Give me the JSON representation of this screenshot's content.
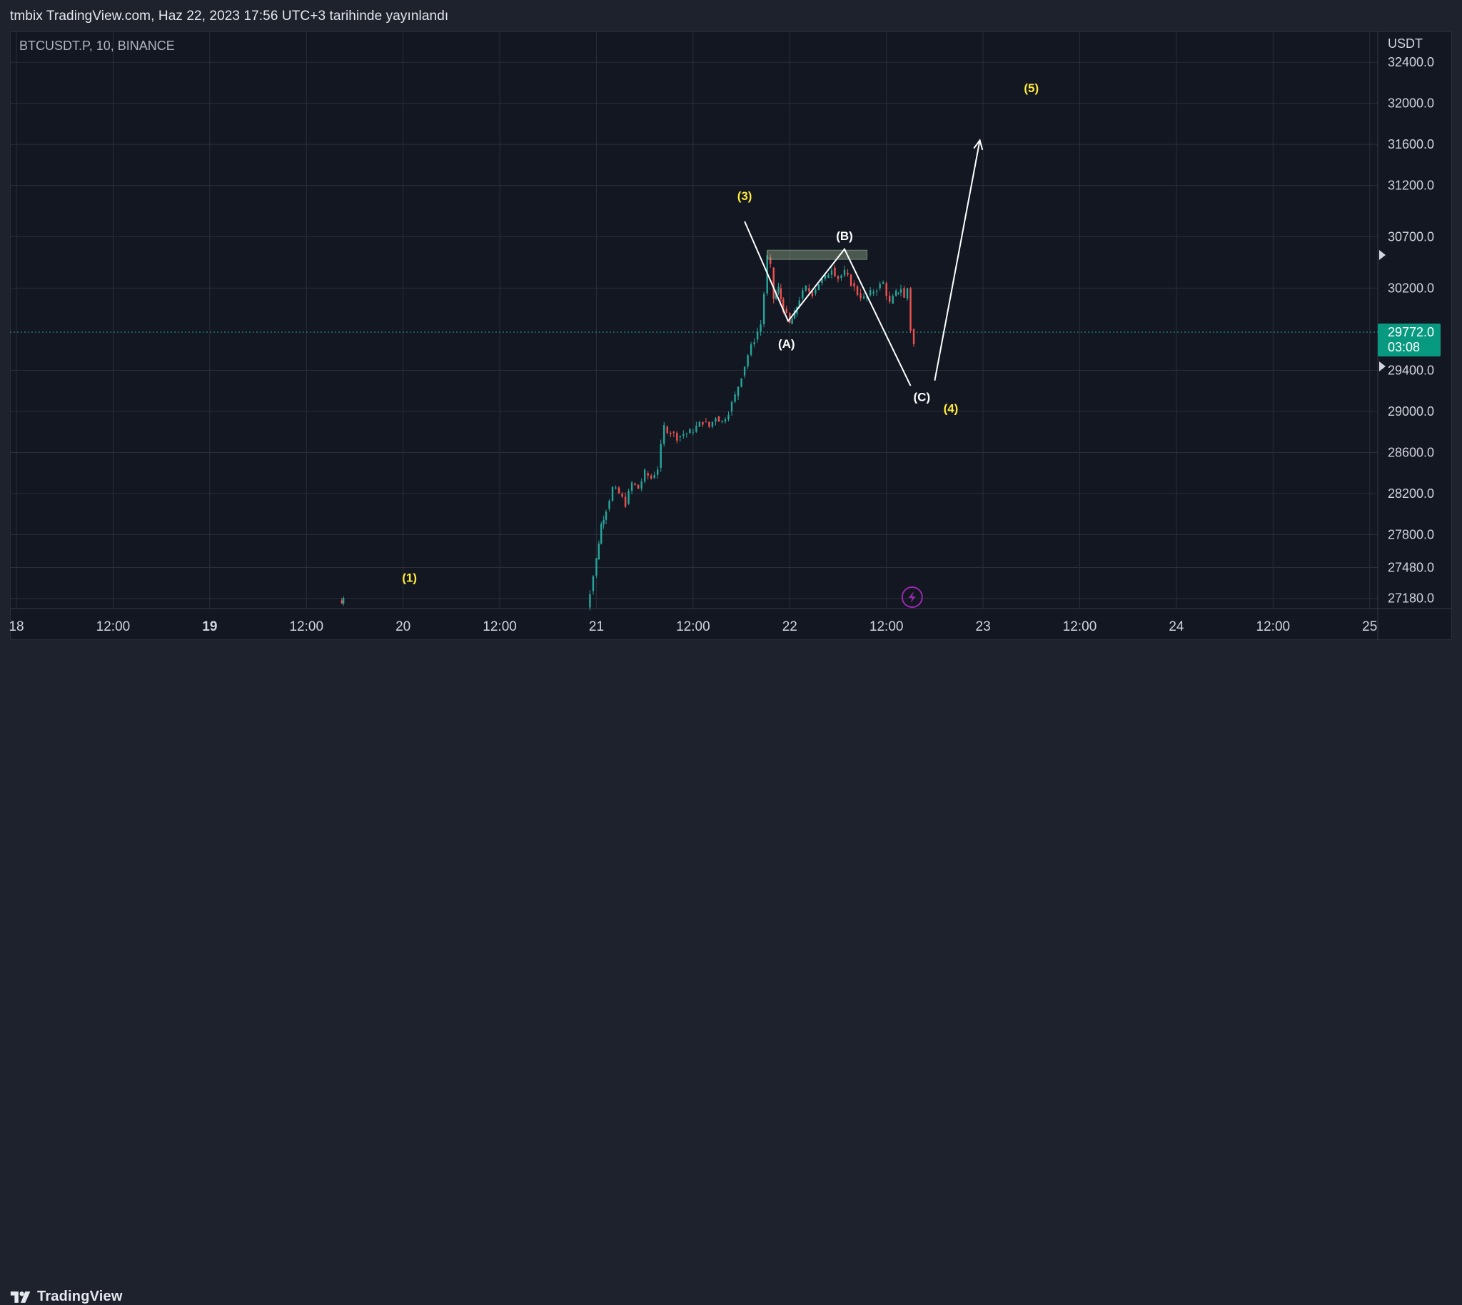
{
  "header": {
    "publish_text": "tmbix TradingView.com, Haz 22, 2023 17:56 UTC+3 tarihinde yayınlandı"
  },
  "footer": {
    "brand": "TradingView"
  },
  "chart_data": {
    "type": "candlestick",
    "symbol_label": "BTCUSDT.P, 10, BINANCE",
    "currency": "USDT",
    "ylim": [
      27080,
      32700
    ],
    "y_ticks": [
      {
        "value": 32400,
        "label": "32400.0"
      },
      {
        "value": 32000,
        "label": "32000.0"
      },
      {
        "value": 31600,
        "label": "31600.0"
      },
      {
        "value": 31200,
        "label": "31200.0"
      },
      {
        "value": 30700,
        "label": "30700.0"
      },
      {
        "value": 30200,
        "label": "30200.0"
      },
      {
        "value": 29400,
        "label": "29400.0"
      },
      {
        "value": 29000,
        "label": "29000.0"
      },
      {
        "value": 28600,
        "label": "28600.0"
      },
      {
        "value": 28200,
        "label": "28200.0"
      },
      {
        "value": 27800,
        "label": "27800.0"
      },
      {
        "value": 27480,
        "label": "27480.0"
      },
      {
        "value": 27180,
        "label": "27180.0"
      }
    ],
    "x_range_hours": [
      -0.4,
      84.5
    ],
    "x_ticks": [
      {
        "hour": 0,
        "label": "18",
        "bold": false
      },
      {
        "hour": 6,
        "label": "12:00",
        "bold": false
      },
      {
        "hour": 12,
        "label": "19",
        "bold": true
      },
      {
        "hour": 18,
        "label": "12:00",
        "bold": false
      },
      {
        "hour": 24,
        "label": "20",
        "bold": false
      },
      {
        "hour": 30,
        "label": "12:00",
        "bold": false
      },
      {
        "hour": 36,
        "label": "21",
        "bold": false
      },
      {
        "hour": 42,
        "label": "12:00",
        "bold": false
      },
      {
        "hour": 48,
        "label": "22",
        "bold": false
      },
      {
        "hour": 54,
        "label": "12:00",
        "bold": false
      },
      {
        "hour": 60,
        "label": "23",
        "bold": false
      },
      {
        "hour": 66,
        "label": "12:00",
        "bold": false
      },
      {
        "hour": 72,
        "label": "24",
        "bold": false
      },
      {
        "hour": 78,
        "label": "12:00",
        "bold": false
      },
      {
        "hour": 84,
        "label": "25",
        "bold": false
      }
    ],
    "last_price": {
      "value": 29772,
      "label": "29772.0",
      "countdown": "03:08"
    },
    "colors": {
      "up": "#26a69a",
      "down": "#ef5350",
      "grid": "#2a2e39",
      "price_line": "#26a69a",
      "wave_label_yellow": "#ffeb3b",
      "wave_label_white": "#ffffff",
      "zone": "#8fa88a",
      "last_price_bg": "#089981",
      "flash_icon": "#9c27b0"
    },
    "price_path": [
      [
        20.1,
        27160
      ],
      [
        20.2,
        27130
      ],
      [
        20.3,
        27200
      ],
      [
        35.4,
        27090
      ],
      [
        35.6,
        27250
      ],
      [
        35.8,
        27400
      ],
      [
        36.0,
        27560
      ],
      [
        36.3,
        27900
      ],
      [
        36.6,
        28050
      ],
      [
        37.0,
        28250
      ],
      [
        37.4,
        28200
      ],
      [
        37.8,
        28100
      ],
      [
        38.2,
        28300
      ],
      [
        38.6,
        28250
      ],
      [
        39.0,
        28400
      ],
      [
        39.4,
        28350
      ],
      [
        39.8,
        28450
      ],
      [
        40.2,
        28850
      ],
      [
        40.6,
        28800
      ],
      [
        41.0,
        28750
      ],
      [
        41.4,
        28780
      ],
      [
        41.8,
        28800
      ],
      [
        42.2,
        28850
      ],
      [
        42.6,
        28900
      ],
      [
        43.0,
        28850
      ],
      [
        43.4,
        28950
      ],
      [
        43.8,
        28900
      ],
      [
        44.2,
        29000
      ],
      [
        44.6,
        29150
      ],
      [
        45.0,
        29350
      ],
      [
        45.4,
        29550
      ],
      [
        45.8,
        29700
      ],
      [
        46.2,
        29850
      ],
      [
        46.4,
        30150
      ],
      [
        46.6,
        30500
      ],
      [
        46.8,
        30400
      ],
      [
        47.0,
        30100
      ],
      [
        47.3,
        30200
      ],
      [
        47.6,
        30000
      ],
      [
        48.0,
        29850
      ],
      [
        48.3,
        29950
      ],
      [
        48.6,
        30100
      ],
      [
        49.0,
        30200
      ],
      [
        49.4,
        30150
      ],
      [
        49.8,
        30250
      ],
      [
        50.2,
        30300
      ],
      [
        50.6,
        30400
      ],
      [
        51.0,
        30300
      ],
      [
        51.4,
        30350
      ],
      [
        51.8,
        30250
      ],
      [
        52.2,
        30150
      ],
      [
        52.6,
        30100
      ],
      [
        53.0,
        30150
      ],
      [
        53.4,
        30200
      ],
      [
        53.8,
        30250
      ],
      [
        54.2,
        30050
      ],
      [
        54.6,
        30150
      ],
      [
        54.9,
        30200
      ],
      [
        55.1,
        30100
      ],
      [
        55.3,
        30200
      ],
      [
        55.5,
        29800
      ],
      [
        55.7,
        29650
      ]
    ],
    "drawings": {
      "wave_lines": [
        [
          [
            45.2,
            30850
          ],
          [
            47.9,
            29880
          ],
          [
            51.4,
            30580
          ],
          [
            55.5,
            29250
          ]
        ],
        [
          [
            57.0,
            29300
          ],
          [
            59.8,
            31640
          ]
        ]
      ],
      "arrowhead_at": [
        59.8,
        31640
      ],
      "zone": {
        "x0": 46.6,
        "x1": 52.8,
        "y0": 30480,
        "y1": 30570
      }
    },
    "wave_labels": [
      {
        "text": "(1)",
        "x": 24.4,
        "y": 27340,
        "color": "yellow"
      },
      {
        "text": "(3)",
        "x": 45.2,
        "y": 31060,
        "color": "yellow"
      },
      {
        "text": "(B)",
        "x": 51.4,
        "y": 30670,
        "color": "white"
      },
      {
        "text": "(A)",
        "x": 47.8,
        "y": 29620,
        "color": "white"
      },
      {
        "text": "(C)",
        "x": 56.2,
        "y": 29100,
        "color": "white"
      },
      {
        "text": "(4)",
        "x": 58.0,
        "y": 28990,
        "color": "yellow"
      },
      {
        "text": "(5)",
        "x": 63.0,
        "y": 32110,
        "color": "yellow"
      }
    ]
  }
}
